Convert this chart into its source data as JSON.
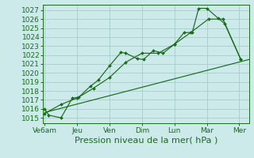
{
  "bg_color": "#cceaea",
  "grid_color": "#aacccc",
  "line_color": "#1a6b1a",
  "marker_color": "#1a6b1a",
  "xlabel": "Pression niveau de la mer( hPa )",
  "xlabel_fontsize": 8,
  "ytick_fontsize": 6.5,
  "xtick_fontsize": 6.5,
  "ylim": [
    1014.4,
    1027.6
  ],
  "yticks": [
    1015,
    1016,
    1017,
    1018,
    1019,
    1020,
    1021,
    1022,
    1023,
    1024,
    1025,
    1026,
    1027
  ],
  "xtick_labels": [
    "Ve6am",
    "Jeu",
    "Ven",
    "Dim",
    "Lun",
    "Mar",
    "Mer"
  ],
  "xtick_positions": [
    0,
    1,
    2,
    3,
    4,
    5,
    6
  ],
  "xlim": [
    -0.05,
    6.3
  ],
  "line1": {
    "x": [
      0.0,
      6.3
    ],
    "y": [
      1015.6,
      1021.5
    ]
  },
  "line2": {
    "x": [
      0.0,
      0.12,
      0.5,
      0.85,
      1.05,
      1.4,
      1.65,
      2.0,
      2.35,
      2.5,
      2.85,
      3.05,
      3.35,
      3.65,
      4.0,
      4.3,
      4.55,
      4.75,
      5.0,
      5.35,
      5.55,
      6.05
    ],
    "y": [
      1016.0,
      1015.3,
      1015.0,
      1017.2,
      1017.3,
      1018.5,
      1019.2,
      1020.8,
      1022.3,
      1022.2,
      1021.6,
      1021.5,
      1022.5,
      1022.2,
      1023.2,
      1024.5,
      1024.5,
      1027.2,
      1027.2,
      1026.1,
      1025.5,
      1021.5
    ]
  },
  "line3": {
    "x": [
      0.0,
      0.5,
      1.0,
      1.5,
      2.0,
      2.5,
      3.0,
      3.5,
      4.0,
      4.5,
      5.05,
      5.5,
      6.05
    ],
    "y": [
      1015.5,
      1016.5,
      1017.2,
      1018.3,
      1019.5,
      1021.2,
      1022.2,
      1022.2,
      1023.2,
      1024.5,
      1026.0,
      1026.0,
      1021.5
    ]
  }
}
